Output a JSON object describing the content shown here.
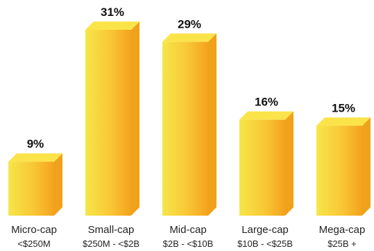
{
  "chart_data": {
    "type": "bar",
    "title": "",
    "xlabel": "",
    "ylabel": "",
    "unit": "%",
    "ylim": [
      0,
      31
    ],
    "categories": [
      "Micro-cap",
      "Small-cap",
      "Mid-cap",
      "Large-cap",
      "Mega-cap"
    ],
    "ranges": [
      "<$250M",
      "$250M - <$2B",
      "$2B - <$10B",
      "$10B - <$25B",
      "$25B +"
    ],
    "values": [
      9,
      31,
      29,
      16,
      15
    ],
    "value_labels": [
      "9%",
      "31%",
      "29%",
      "16%",
      "15%"
    ],
    "colors": {
      "bar_left": "#f6e64a",
      "bar_mid": "#f8c736",
      "bar_right": "#f4a21d",
      "bar_top": "#fbe44a",
      "bar_side": "#f0a21a"
    }
  }
}
